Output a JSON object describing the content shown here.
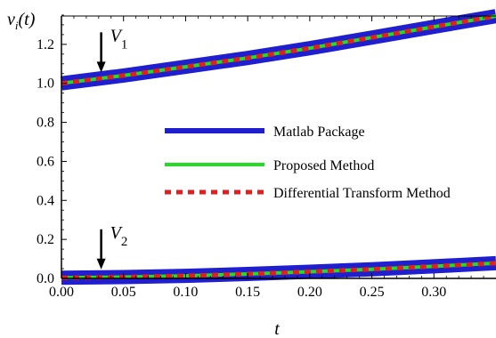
{
  "chart_data": {
    "type": "line",
    "ylabel": "v_i(t)",
    "ylabel_main": "v",
    "ylabel_sub": "i",
    "ylabel_rest": "(t)",
    "xlabel": "t",
    "xlim": [
      0,
      0.35
    ],
    "ylim": [
      0,
      1.4
    ],
    "x_ticks": [
      "0.00",
      "0.05",
      "0.10",
      "0.15",
      "0.20",
      "0.25",
      "0.30"
    ],
    "y_ticks": [
      "0.0",
      "0.2",
      "0.4",
      "0.6",
      "0.8",
      "1.0",
      "1.2"
    ],
    "grid": false,
    "legend_position": "center-right",
    "series": [
      {
        "name": "Matlab Package",
        "color": "#1f1fd0",
        "style": "solid-thick",
        "curves": [
          {
            "x": [
              0,
              0.05,
              0.1,
              0.15,
              0.2,
              0.25,
              0.3,
              0.35
            ],
            "y": [
              1.0,
              1.04,
              1.085,
              1.13,
              1.18,
              1.235,
              1.29,
              1.345
            ]
          },
          {
            "x": [
              0,
              0.05,
              0.1,
              0.15,
              0.2,
              0.25,
              0.3,
              0.35
            ],
            "y": [
              0.003,
              0.007,
              0.013,
              0.023,
              0.034,
              0.047,
              0.062,
              0.078
            ]
          }
        ]
      },
      {
        "name": "Proposed Method",
        "color": "#22dd22",
        "style": "solid",
        "curves": [
          {
            "x": [
              0,
              0.05,
              0.1,
              0.15,
              0.2,
              0.25,
              0.3,
              0.35
            ],
            "y": [
              1.0,
              1.04,
              1.085,
              1.13,
              1.18,
              1.235,
              1.29,
              1.345
            ]
          },
          {
            "x": [
              0,
              0.05,
              0.1,
              0.15,
              0.2,
              0.25,
              0.3,
              0.35
            ],
            "y": [
              0.003,
              0.007,
              0.013,
              0.023,
              0.034,
              0.047,
              0.062,
              0.078
            ]
          }
        ]
      },
      {
        "name": "Differential Transform Method",
        "color": "#e02020",
        "style": "dashed",
        "curves": [
          {
            "x": [
              0,
              0.05,
              0.1,
              0.15,
              0.2,
              0.25,
              0.3,
              0.35
            ],
            "y": [
              1.0,
              1.04,
              1.085,
              1.13,
              1.18,
              1.235,
              1.29,
              1.345
            ]
          },
          {
            "x": [
              0,
              0.05,
              0.1,
              0.15,
              0.2,
              0.25,
              0.3,
              0.35
            ],
            "y": [
              0.003,
              0.007,
              0.013,
              0.023,
              0.034,
              0.047,
              0.062,
              0.078
            ]
          }
        ]
      }
    ],
    "annotations": [
      {
        "main": "V",
        "sub": "1",
        "x": 0.032,
        "y": 1.02
      },
      {
        "main": "V",
        "sub": "2",
        "x": 0.032,
        "y": 0.01
      }
    ]
  }
}
